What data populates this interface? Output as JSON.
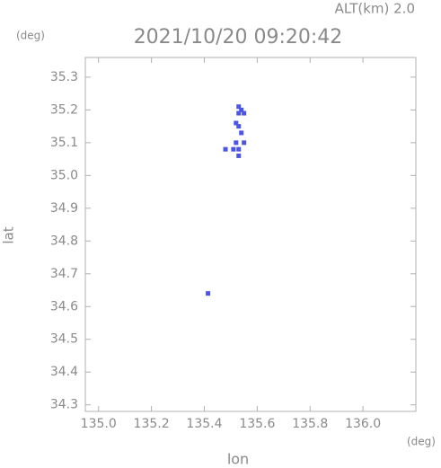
{
  "chart_data": {
    "type": "scatter",
    "title": "2021/10/20 09:20:42",
    "altitude_label": "ALT(km) 2.0",
    "x_label": "lon",
    "y_label": "lat",
    "x_unit": "(deg)",
    "y_unit": "(deg)",
    "xlim": [
      134.95,
      136.2
    ],
    "ylim": [
      34.28,
      35.36
    ],
    "xticks": [
      {
        "value": 135,
        "label": "135.0"
      },
      135.2,
      135.4,
      135.6,
      135.8,
      {
        "value": 136,
        "label": "136.0"
      }
    ],
    "yticks": [
      34.3,
      34.4,
      34.5,
      34.6,
      34.7,
      34.8,
      34.9,
      {
        "value": 35,
        "label": "35.0"
      },
      35.1,
      35.2,
      35.3
    ],
    "color": "#4a55e8",
    "x": [
      135.53,
      135.54,
      135.53,
      135.55,
      135.52,
      135.53,
      135.54,
      135.52,
      135.55,
      135.51,
      135.53,
      135.53,
      135.48,
      135.414
    ],
    "values": [
      35.21,
      35.2,
      35.19,
      35.19,
      35.16,
      35.15,
      35.13,
      35.1,
      35.1,
      35.08,
      35.08,
      35.06,
      35.08,
      34.64
    ]
  }
}
